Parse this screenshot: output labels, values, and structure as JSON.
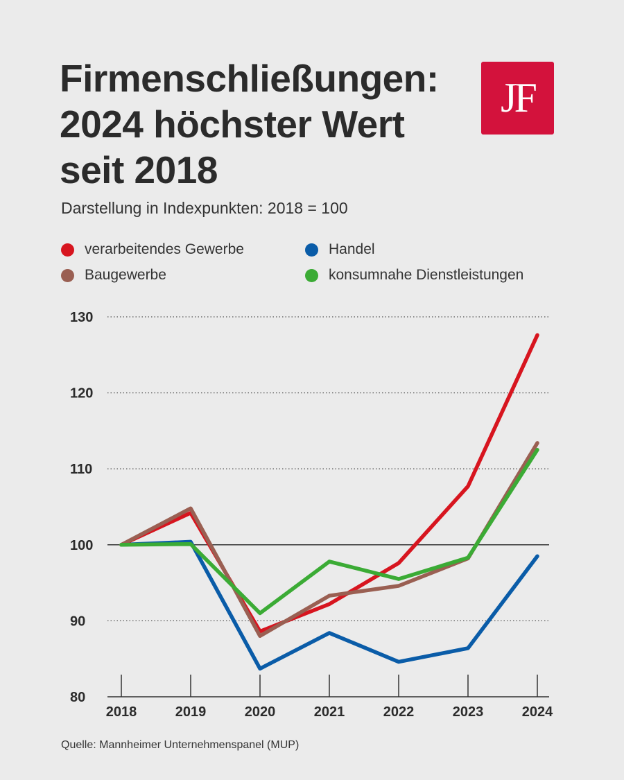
{
  "title_lines": [
    "Firmenschließungen:",
    "2024 höchster Wert",
    "seit 2018"
  ],
  "subtitle": "Darstellung in Indexpunkten: 2018 = 100",
  "logo_text": "JF",
  "source": "Quelle: Mannheimer Unternehmenspanel (MUP)",
  "colors": {
    "background": "#ebebeb",
    "logo": "#d3123c"
  },
  "chart_data": {
    "type": "line",
    "title": "Firmenschließungen: 2024 höchster Wert seit 2018",
    "subtitle": "Darstellung in Indexpunkten: 2018 = 100",
    "xlabel": "",
    "ylabel": "",
    "x": [
      "2018",
      "2019",
      "2020",
      "2021",
      "2022",
      "2023",
      "2024"
    ],
    "ylim": [
      80,
      130
    ],
    "yticks": [
      80,
      90,
      100,
      110,
      120,
      130
    ],
    "baseline": 100,
    "grid": "dotted horizontal",
    "legend_position": "top",
    "series": [
      {
        "name": "verarbeitendes Gewerbe",
        "color": "#d7151f",
        "values": [
          100,
          104.2,
          88.6,
          92.2,
          97.6,
          107.7,
          127.6
        ]
      },
      {
        "name": "Handel",
        "color": "#0a5ca8",
        "values": [
          100,
          100.4,
          83.7,
          88.4,
          84.6,
          86.4,
          98.5
        ]
      },
      {
        "name": "Baugewerbe",
        "color": "#9a5f52",
        "values": [
          100,
          104.8,
          88,
          93.3,
          94.6,
          98.2,
          113.4
        ]
      },
      {
        "name": "konsumnahe Dienstleistungen",
        "color": "#3bab35",
        "values": [
          100,
          100.1,
          91,
          97.8,
          95.5,
          98.3,
          112.5
        ]
      }
    ],
    "legend_order": [
      "verarbeitendes Gewerbe",
      "Handel",
      "Baugewerbe",
      "konsumnahe Dienstleistungen"
    ]
  }
}
